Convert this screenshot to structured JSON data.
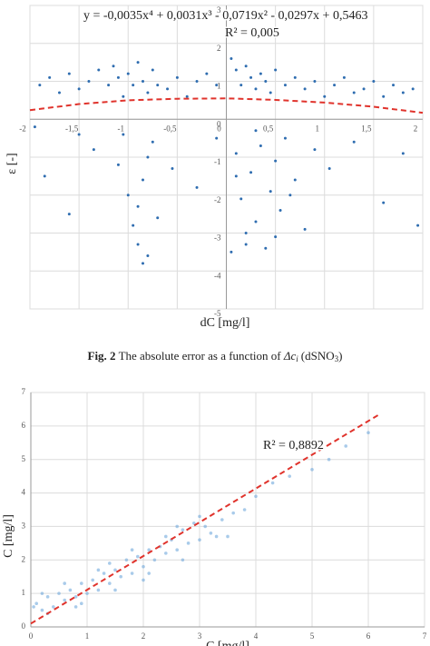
{
  "chart_data": [
    {
      "type": "scatter",
      "annotations": [
        "y = -0,0035x⁴ + 0,0031x³ - 0,0719x² - 0,0297x + 0,5463",
        "R² = 0,005"
      ],
      "xlabel": "dC [mg/l]",
      "ylabel": "ε [-]",
      "xlim": [
        -2,
        2
      ],
      "ylim": [
        -5,
        3
      ],
      "xticks": [
        -2,
        {
          "value": -1.5,
          "label": "-1,5"
        },
        -1,
        {
          "value": -0.5,
          "label": "-0,5"
        },
        0,
        {
          "value": 0.5,
          "label": "0,5"
        },
        1,
        {
          "value": 1.5,
          "label": "1,5"
        },
        2
      ],
      "yticks": [
        3,
        2,
        1,
        0,
        -1,
        -2,
        -3,
        -4,
        -5
      ],
      "grid": true,
      "series": [
        {
          "color": "#2f6db0",
          "x": [
            -1.9,
            -1.8,
            -1.7,
            -1.6,
            -1.5,
            -1.4,
            -1.3,
            -1.2,
            -1.15,
            -1.1,
            -1.05,
            -1.0,
            -0.95,
            -0.9,
            -0.85,
            -0.8,
            -0.75,
            -0.7,
            -0.6,
            -0.5,
            -0.4,
            -0.3,
            -0.2,
            -0.1,
            0.05,
            0.1,
            0.15,
            0.2,
            0.25,
            0.3,
            0.35,
            0.4,
            0.45,
            0.5,
            0.6,
            0.7,
            0.8,
            0.9,
            1.0,
            1.1,
            1.2,
            1.3,
            1.4,
            1.5,
            1.6,
            1.7,
            1.8,
            1.9
          ],
          "values": [
            0.9,
            1.1,
            0.7,
            1.2,
            0.8,
            1.0,
            1.3,
            0.9,
            1.4,
            1.1,
            0.6,
            1.2,
            0.9,
            1.5,
            1.0,
            0.7,
            1.3,
            0.9,
            0.8,
            1.1,
            0.6,
            1.0,
            1.2,
            0.9,
            1.6,
            1.3,
            0.9,
            1.4,
            1.1,
            0.8,
            1.2,
            1.0,
            0.7,
            1.3,
            0.9,
            1.1,
            0.8,
            1.0,
            0.6,
            0.9,
            1.1,
            0.7,
            0.8,
            1.0,
            0.6,
            0.9,
            0.7,
            0.8
          ]
        },
        {
          "color": "#2f6db0",
          "x": [
            -1.85,
            -1.6,
            -1.35,
            -1.1,
            -1.0,
            -0.95,
            -0.9,
            -0.85,
            -0.8,
            -0.75,
            -0.9,
            -0.85,
            -0.8,
            -1.05,
            -0.7,
            -0.3,
            -0.1,
            0.1,
            0.15,
            0.2,
            0.25,
            0.3,
            0.35,
            0.4,
            0.45,
            0.5,
            0.55,
            0.6,
            0.7,
            0.8,
            0.9,
            0.2,
            0.3,
            0.1,
            0.5,
            0.65,
            1.05,
            1.3,
            1.6,
            1.8,
            1.95,
            -1.95,
            -1.5,
            -0.55,
            0.05
          ],
          "values": [
            -1.5,
            -2.5,
            -0.8,
            -1.2,
            -2.0,
            -2.8,
            -3.3,
            -1.6,
            -3.6,
            -0.6,
            -2.3,
            -3.8,
            -1.0,
            -0.4,
            -2.6,
            -1.8,
            -0.5,
            -0.9,
            -2.1,
            -3.0,
            -1.4,
            -2.7,
            -0.7,
            -3.4,
            -1.9,
            -1.1,
            -2.4,
            -0.5,
            -1.6,
            -2.9,
            -0.8,
            -3.3,
            -0.3,
            -1.5,
            -3.1,
            -2.0,
            -1.3,
            -0.6,
            -2.2,
            -0.9,
            -2.8,
            -0.2,
            -0.4,
            -1.3,
            -3.5
          ]
        },
        {
          "color": "#e0332c",
          "style": "dashed",
          "x": [
            -2,
            -1.5,
            -1,
            -0.5,
            0,
            0.5,
            1,
            1.5,
            2
          ],
          "values": [
            0.24,
            0.4,
            0.5,
            0.54,
            0.55,
            0.51,
            0.44,
            0.33,
            0.17
          ]
        }
      ]
    },
    {
      "type": "scatter",
      "annotations": [
        "R² = 0,8892"
      ],
      "xlabel": "C [mg/l]",
      "ylabel": "C [mg/l]",
      "xlim": [
        0,
        7
      ],
      "ylim": [
        0,
        7
      ],
      "xticks": [
        0,
        1,
        2,
        3,
        4,
        5,
        6,
        7
      ],
      "yticks": [
        0,
        1,
        2,
        3,
        4,
        5,
        6,
        7
      ],
      "grid": true,
      "series": [
        {
          "color": "#6fa8dc",
          "x": [
            0.05,
            0.1,
            0.2,
            0.3,
            0.4,
            0.5,
            0.6,
            0.7,
            0.8,
            0.9,
            1.0,
            1.1,
            1.2,
            1.3,
            1.4,
            1.5,
            1.6,
            1.7,
            1.8,
            1.9,
            2.0,
            2.1,
            2.2,
            2.3,
            2.4,
            2.5,
            2.6,
            2.7,
            2.8,
            2.9,
            3.0,
            3.1,
            3.2,
            3.4,
            3.6,
            3.8,
            4.0,
            4.3,
            4.6,
            5.0,
            5.3,
            5.6,
            6.0,
            0.3,
            0.6,
            0.9,
            1.2,
            1.5,
            1.8,
            2.1,
            2.4,
            2.7,
            3.0,
            3.3,
            0.2,
            0.8,
            1.4,
            2.0,
            2.6,
            3.5
          ],
          "values": [
            0.6,
            0.7,
            0.5,
            0.9,
            0.6,
            1.0,
            0.8,
            1.1,
            0.9,
            1.3,
            1.0,
            1.4,
            1.1,
            1.6,
            1.3,
            1.7,
            1.5,
            2.0,
            1.6,
            2.1,
            1.8,
            2.3,
            2.0,
            2.4,
            2.2,
            2.6,
            2.3,
            2.9,
            2.5,
            3.1,
            2.6,
            3.0,
            2.8,
            3.2,
            3.4,
            3.5,
            3.9,
            4.3,
            4.5,
            4.7,
            5.0,
            5.4,
            5.8,
            0.4,
            1.3,
            0.7,
            1.7,
            1.1,
            2.3,
            1.6,
            2.7,
            2.0,
            3.3,
            2.7,
            1.0,
            0.6,
            1.9,
            1.4,
            3.0,
            2.7
          ]
        },
        {
          "color": "#e0332c",
          "style": "dashed",
          "x": [
            0,
            6.2
          ],
          "values": [
            0.1,
            6.35
          ]
        }
      ]
    }
  ],
  "caption": {
    "label": "Fig. 2",
    "text": "The absolute error as a function of",
    "symbol": "Δc",
    "subscript": "i",
    "tail": "(dSNO",
    "tail_sub": "3",
    "tail_end": ")"
  }
}
